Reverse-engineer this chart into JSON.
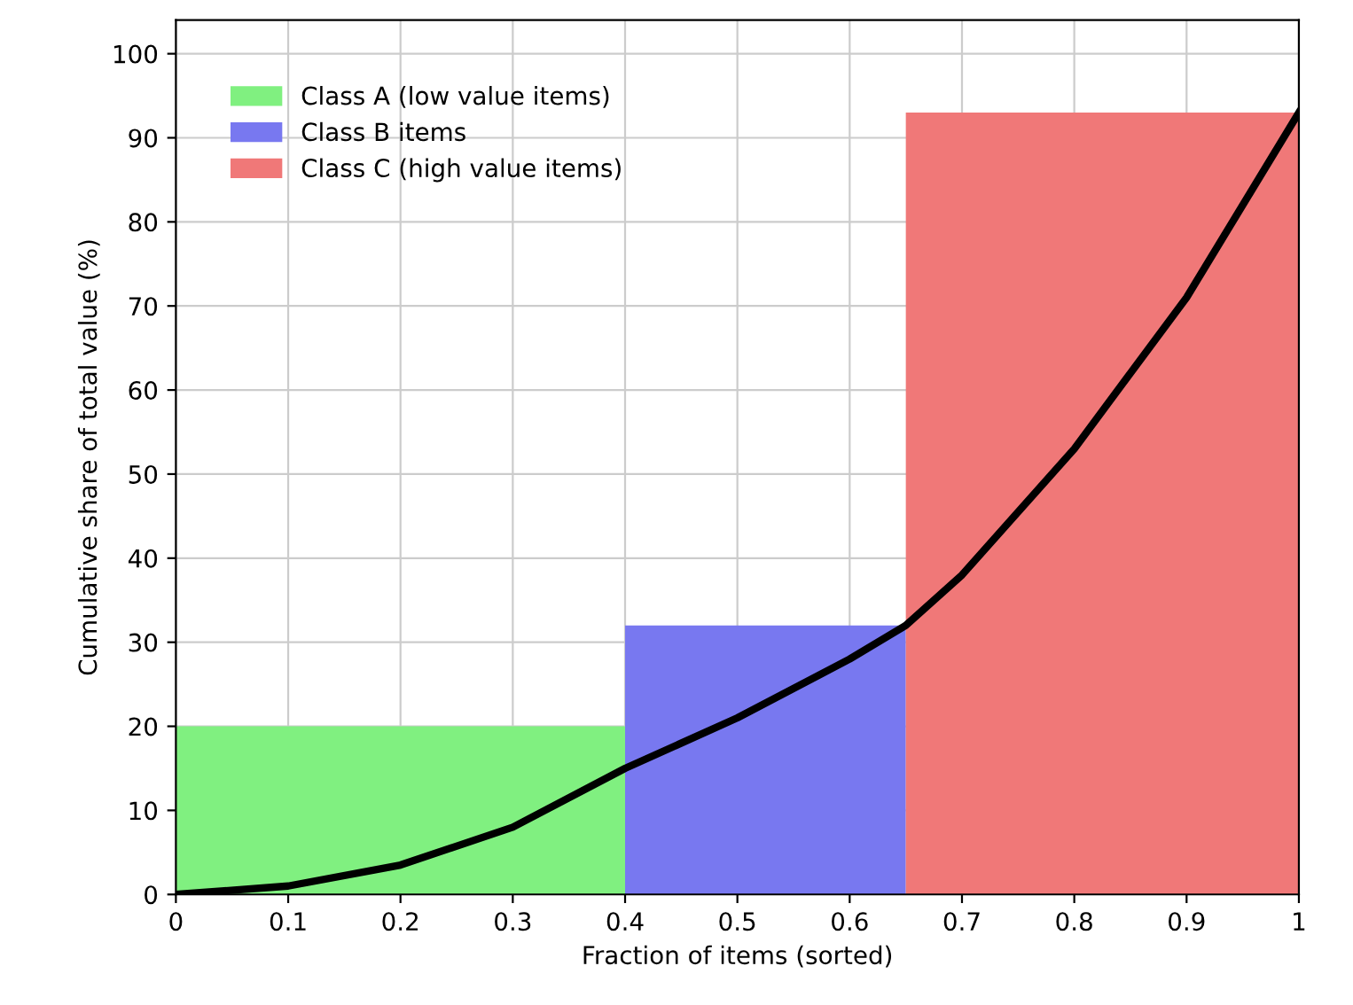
{
  "chart_data": {
    "type": "area",
    "xlabel": "Fraction of items (sorted)",
    "ylabel": "Cumulative share of total value (%)",
    "xlim": [
      0,
      1
    ],
    "ylim": [
      0,
      104
    ],
    "xticks": [
      0,
      0.1,
      0.2,
      0.3,
      0.4,
      0.5,
      0.6,
      0.7,
      0.8,
      0.9,
      1
    ],
    "yticks": [
      0,
      10,
      20,
      30,
      40,
      50,
      60,
      70,
      80,
      90,
      100
    ],
    "grid": true,
    "legend": "top left",
    "series": [
      {
        "name": "Class A (low value items)",
        "color": "#80f080",
        "x": [
          0,
          0.4
        ],
        "values": [
          20,
          20
        ]
      },
      {
        "name": "Class B items",
        "color": "#7878f0",
        "x": [
          0.4,
          0.65
        ],
        "values": [
          32,
          32
        ]
      },
      {
        "name": "Class C (high value items)",
        "color": "#f07878",
        "x": [
          0.65,
          1
        ],
        "values": [
          93,
          93
        ]
      },
      {
        "type": "line",
        "color": "#000000",
        "x": [
          0,
          0.1,
          0.2,
          0.3,
          0.4,
          0.5,
          0.6,
          0.65,
          0.7,
          0.8,
          0.9,
          1
        ],
        "values": [
          0,
          1,
          3.5,
          8,
          15,
          21,
          28,
          32,
          38,
          53,
          71,
          93
        ]
      }
    ]
  }
}
